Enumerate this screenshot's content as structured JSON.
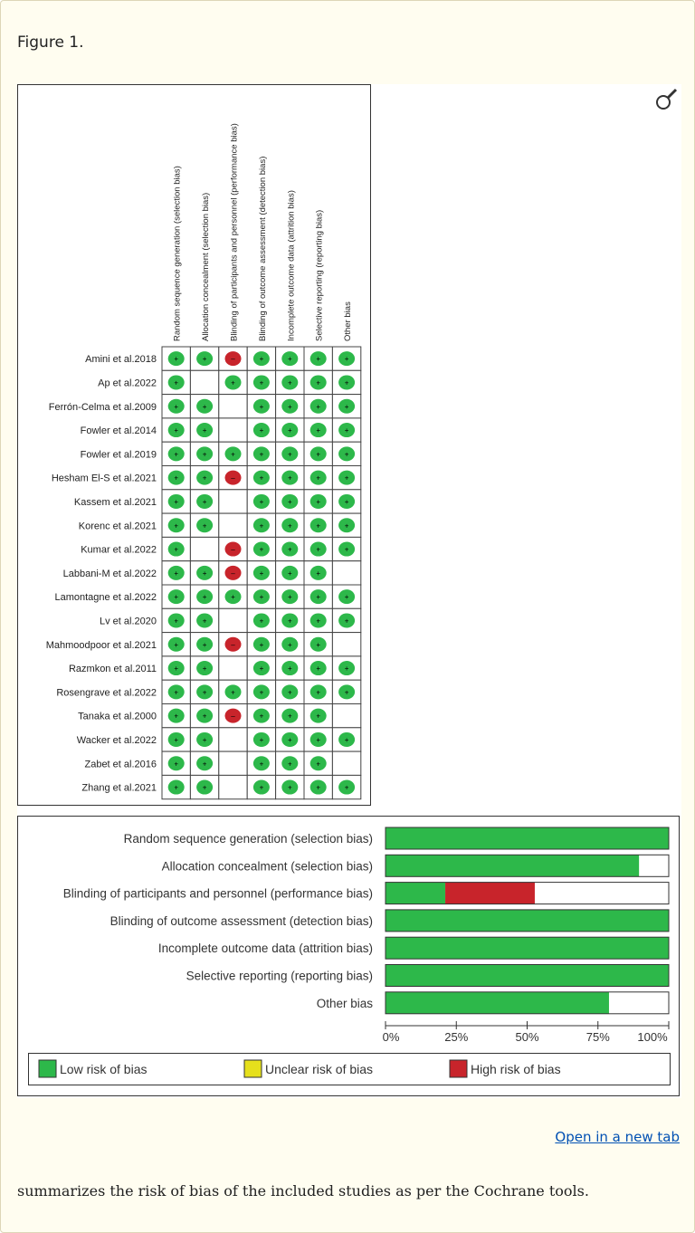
{
  "figure_label": "Figure 1.",
  "open_link": "Open in a new tab",
  "caption": "summarizes the risk of bias of the included studies as per the Cochrane tools.",
  "colors": {
    "low": "#2db84a",
    "unclear": "#e6e01c",
    "high": "#c8242b"
  },
  "chart_data": [
    {
      "type": "heatmap",
      "domains": [
        "Random sequence generation (selection bias)",
        "Allocation concealment (selection bias)",
        "Blinding of participants and personnel (performance bias)",
        "Blinding of outcome assessment (detection bias)",
        "Incomplete outcome data (attrition bias)",
        "Selective reporting (reporting bias)",
        "Other bias"
      ],
      "studies": [
        {
          "name": "Amini et al.2018",
          "ratings": [
            "+",
            "+",
            "-",
            "+",
            "+",
            "+",
            "+"
          ]
        },
        {
          "name": "Ap et al.2022",
          "ratings": [
            "+",
            "",
            "+",
            "+",
            "+",
            "+",
            "+"
          ]
        },
        {
          "name": "Ferrón-Celma et al.2009",
          "ratings": [
            "+",
            "+",
            "",
            "+",
            "+",
            "+",
            "+"
          ]
        },
        {
          "name": "Fowler et al.2014",
          "ratings": [
            "+",
            "+",
            "",
            "+",
            "+",
            "+",
            "+"
          ]
        },
        {
          "name": "Fowler et al.2019",
          "ratings": [
            "+",
            "+",
            "+",
            "+",
            "+",
            "+",
            "+"
          ]
        },
        {
          "name": "Hesham El-S et al.2021",
          "ratings": [
            "+",
            "+",
            "-",
            "+",
            "+",
            "+",
            "+"
          ]
        },
        {
          "name": "Kassem et al.2021",
          "ratings": [
            "+",
            "+",
            "",
            "+",
            "+",
            "+",
            "+"
          ]
        },
        {
          "name": "Korenc et al.2021",
          "ratings": [
            "+",
            "+",
            "",
            "+",
            "+",
            "+",
            "+"
          ]
        },
        {
          "name": "Kumar et al.2022",
          "ratings": [
            "+",
            "",
            "-",
            "+",
            "+",
            "+",
            "+"
          ]
        },
        {
          "name": "Labbani-M et al.2022",
          "ratings": [
            "+",
            "+",
            "-",
            "+",
            "+",
            "+",
            ""
          ]
        },
        {
          "name": "Lamontagne et al.2022",
          "ratings": [
            "+",
            "+",
            "+",
            "+",
            "+",
            "+",
            "+"
          ]
        },
        {
          "name": "Lv et al.2020",
          "ratings": [
            "+",
            "+",
            "",
            "+",
            "+",
            "+",
            "+"
          ]
        },
        {
          "name": "Mahmoodpoor et al.2021",
          "ratings": [
            "+",
            "+",
            "-",
            "+",
            "+",
            "+",
            ""
          ]
        },
        {
          "name": "Razmkon et al.2011",
          "ratings": [
            "+",
            "+",
            "",
            "+",
            "+",
            "+",
            "+"
          ]
        },
        {
          "name": "Rosengrave et al.2022",
          "ratings": [
            "+",
            "+",
            "+",
            "+",
            "+",
            "+",
            "+"
          ]
        },
        {
          "name": "Tanaka et al.2000",
          "ratings": [
            "+",
            "+",
            "-",
            "+",
            "+",
            "+",
            ""
          ]
        },
        {
          "name": "Wacker et al.2022",
          "ratings": [
            "+",
            "+",
            "",
            "+",
            "+",
            "+",
            "+"
          ]
        },
        {
          "name": "Zabet et al.2016",
          "ratings": [
            "+",
            "+",
            "",
            "+",
            "+",
            "+",
            ""
          ]
        },
        {
          "name": "Zhang et al.2021",
          "ratings": [
            "+",
            "+",
            "",
            "+",
            "+",
            "+",
            "+"
          ]
        }
      ]
    },
    {
      "type": "bar",
      "stacked": true,
      "orientation": "horizontal",
      "categories": [
        "Random sequence generation (selection bias)",
        "Allocation concealment (selection bias)",
        "Blinding of participants and personnel (performance bias)",
        "Blinding of outcome assessment (detection bias)",
        "Incomplete outcome data (attrition bias)",
        "Selective reporting (reporting bias)",
        "Other bias"
      ],
      "series": [
        {
          "name": "Low risk of bias",
          "values": [
            100,
            89.5,
            21.1,
            100,
            100,
            100,
            78.9
          ]
        },
        {
          "name": "Unclear risk of bias",
          "values": [
            0,
            0,
            0,
            0,
            0,
            0,
            0
          ]
        },
        {
          "name": "High risk of bias",
          "values": [
            0,
            0,
            31.6,
            0,
            0,
            0,
            0
          ]
        }
      ],
      "xlim": [
        0,
        100
      ],
      "xticks": [
        "0%",
        "25%",
        "50%",
        "75%",
        "100%"
      ],
      "legend": "bottom"
    }
  ]
}
